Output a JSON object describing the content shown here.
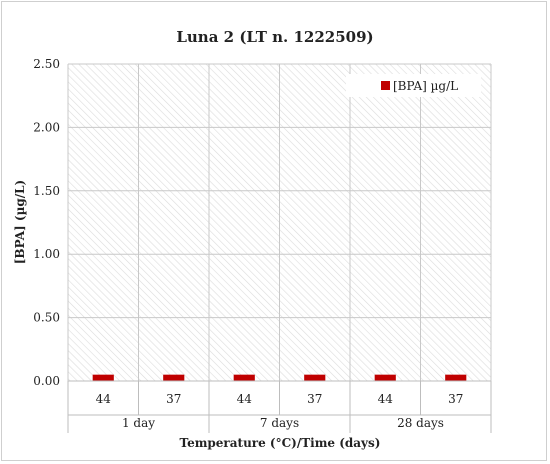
{
  "chart_data": {
    "type": "bar",
    "title": "Luna 2 (LT n. 1222509)",
    "xlabel": "Temperature (°C)/Time (days)",
    "ylabel": "[BPA]  (µg/L)",
    "ylim": [
      0,
      2.5
    ],
    "yticks": [
      "0.00",
      "0.50",
      "1.00",
      "1.50",
      "2.00",
      "2.50"
    ],
    "grid": true,
    "legend_position": "top-right",
    "groups": [
      {
        "label": "1 day",
        "categories": [
          "44",
          "37"
        ]
      },
      {
        "label": "7 days",
        "categories": [
          "44",
          "37"
        ]
      },
      {
        "label": "28 days",
        "categories": [
          "44",
          "37"
        ]
      }
    ],
    "categories": [
      "44",
      "37",
      "44",
      "37",
      "44",
      "37"
    ],
    "series": [
      {
        "name": "[BPA] µg/L",
        "color": "#c00000",
        "values": [
          0.05,
          0.05,
          0.05,
          0.05,
          0.05,
          0.05
        ]
      }
    ]
  }
}
